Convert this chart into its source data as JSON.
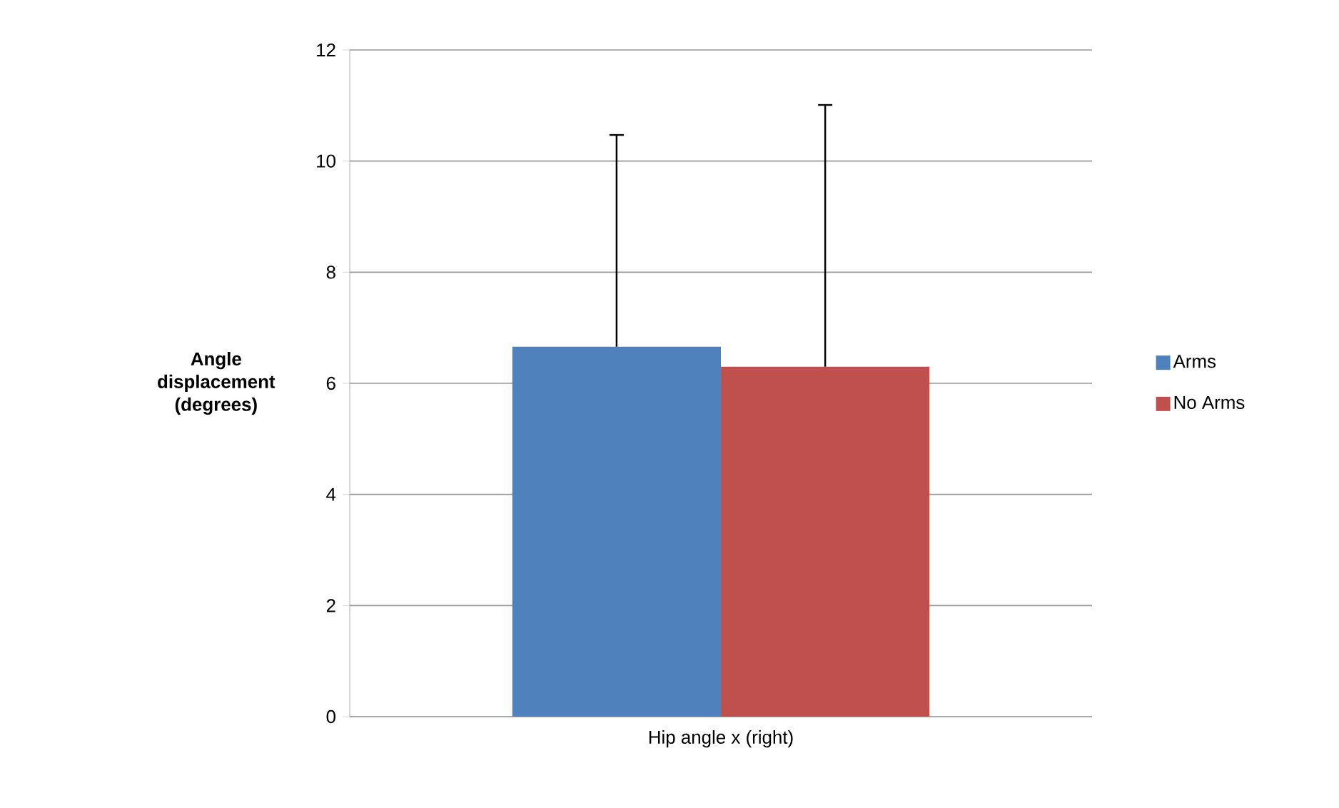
{
  "chart_data": {
    "type": "bar",
    "ylabel": "Angle displacement (degrees)",
    "categories": [
      "Hip angle x (right)"
    ],
    "series": [
      {
        "name": "Arms",
        "color": "#4f81bd",
        "values": [
          6.66
        ],
        "errors": [
          [
            6.66,
            10.47
          ]
        ]
      },
      {
        "name": "No Arms",
        "color": "#c0504d",
        "values": [
          6.3
        ],
        "errors": [
          [
            6.3,
            11.01
          ]
        ]
      }
    ],
    "ylim": [
      0,
      12
    ],
    "yticks": [
      0,
      2,
      4,
      6,
      8,
      10,
      12
    ],
    "grid": "y",
    "legend": "right"
  }
}
